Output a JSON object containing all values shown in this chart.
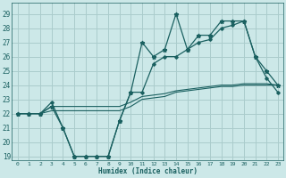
{
  "background_color": "#cce8e8",
  "grid_color": "#aacccc",
  "line_color": "#1a6060",
  "xlabel": "Humidex (Indice chaleur)",
  "hours": [
    0,
    1,
    2,
    3,
    4,
    5,
    6,
    7,
    8,
    9,
    10,
    11,
    12,
    13,
    14,
    15,
    16,
    17,
    18,
    19,
    20,
    21,
    22,
    23
  ],
  "line_star": [
    22,
    22,
    22,
    22.5,
    21,
    19,
    19,
    19,
    19,
    21.5,
    23.5,
    27,
    26,
    26.5,
    29,
    26.5,
    27.5,
    27.5,
    28.5,
    28.5,
    28.5,
    26,
    25,
    24
  ],
  "line_diamond": [
    22,
    22,
    22,
    22.8,
    21,
    19,
    19,
    19,
    19,
    21.5,
    23.5,
    23.5,
    25.5,
    26,
    26,
    26.5,
    27,
    27.2,
    28,
    28.2,
    28.5,
    26,
    24.5,
    23.5
  ],
  "line_slow1": [
    22,
    22,
    22,
    22.2,
    22.2,
    22.2,
    22.2,
    22.2,
    22.2,
    22.2,
    22.5,
    23,
    23.1,
    23.2,
    23.5,
    23.6,
    23.7,
    23.8,
    23.9,
    23.9,
    24,
    24,
    24,
    24
  ],
  "line_slow2": [
    22,
    22,
    22,
    22.5,
    22.5,
    22.5,
    22.5,
    22.5,
    22.5,
    22.5,
    22.8,
    23.2,
    23.3,
    23.4,
    23.6,
    23.7,
    23.8,
    23.9,
    24,
    24,
    24.1,
    24.1,
    24.1,
    24
  ],
  "ylim_min": 18.7,
  "ylim_max": 29.8,
  "yticks": [
    19,
    20,
    21,
    22,
    23,
    24,
    25,
    26,
    27,
    28,
    29
  ],
  "xticks": [
    0,
    1,
    2,
    3,
    4,
    5,
    6,
    7,
    8,
    9,
    10,
    11,
    12,
    13,
    14,
    15,
    16,
    17,
    18,
    19,
    20,
    21,
    22,
    23
  ],
  "figsize": [
    3.2,
    2.0
  ],
  "dpi": 100
}
